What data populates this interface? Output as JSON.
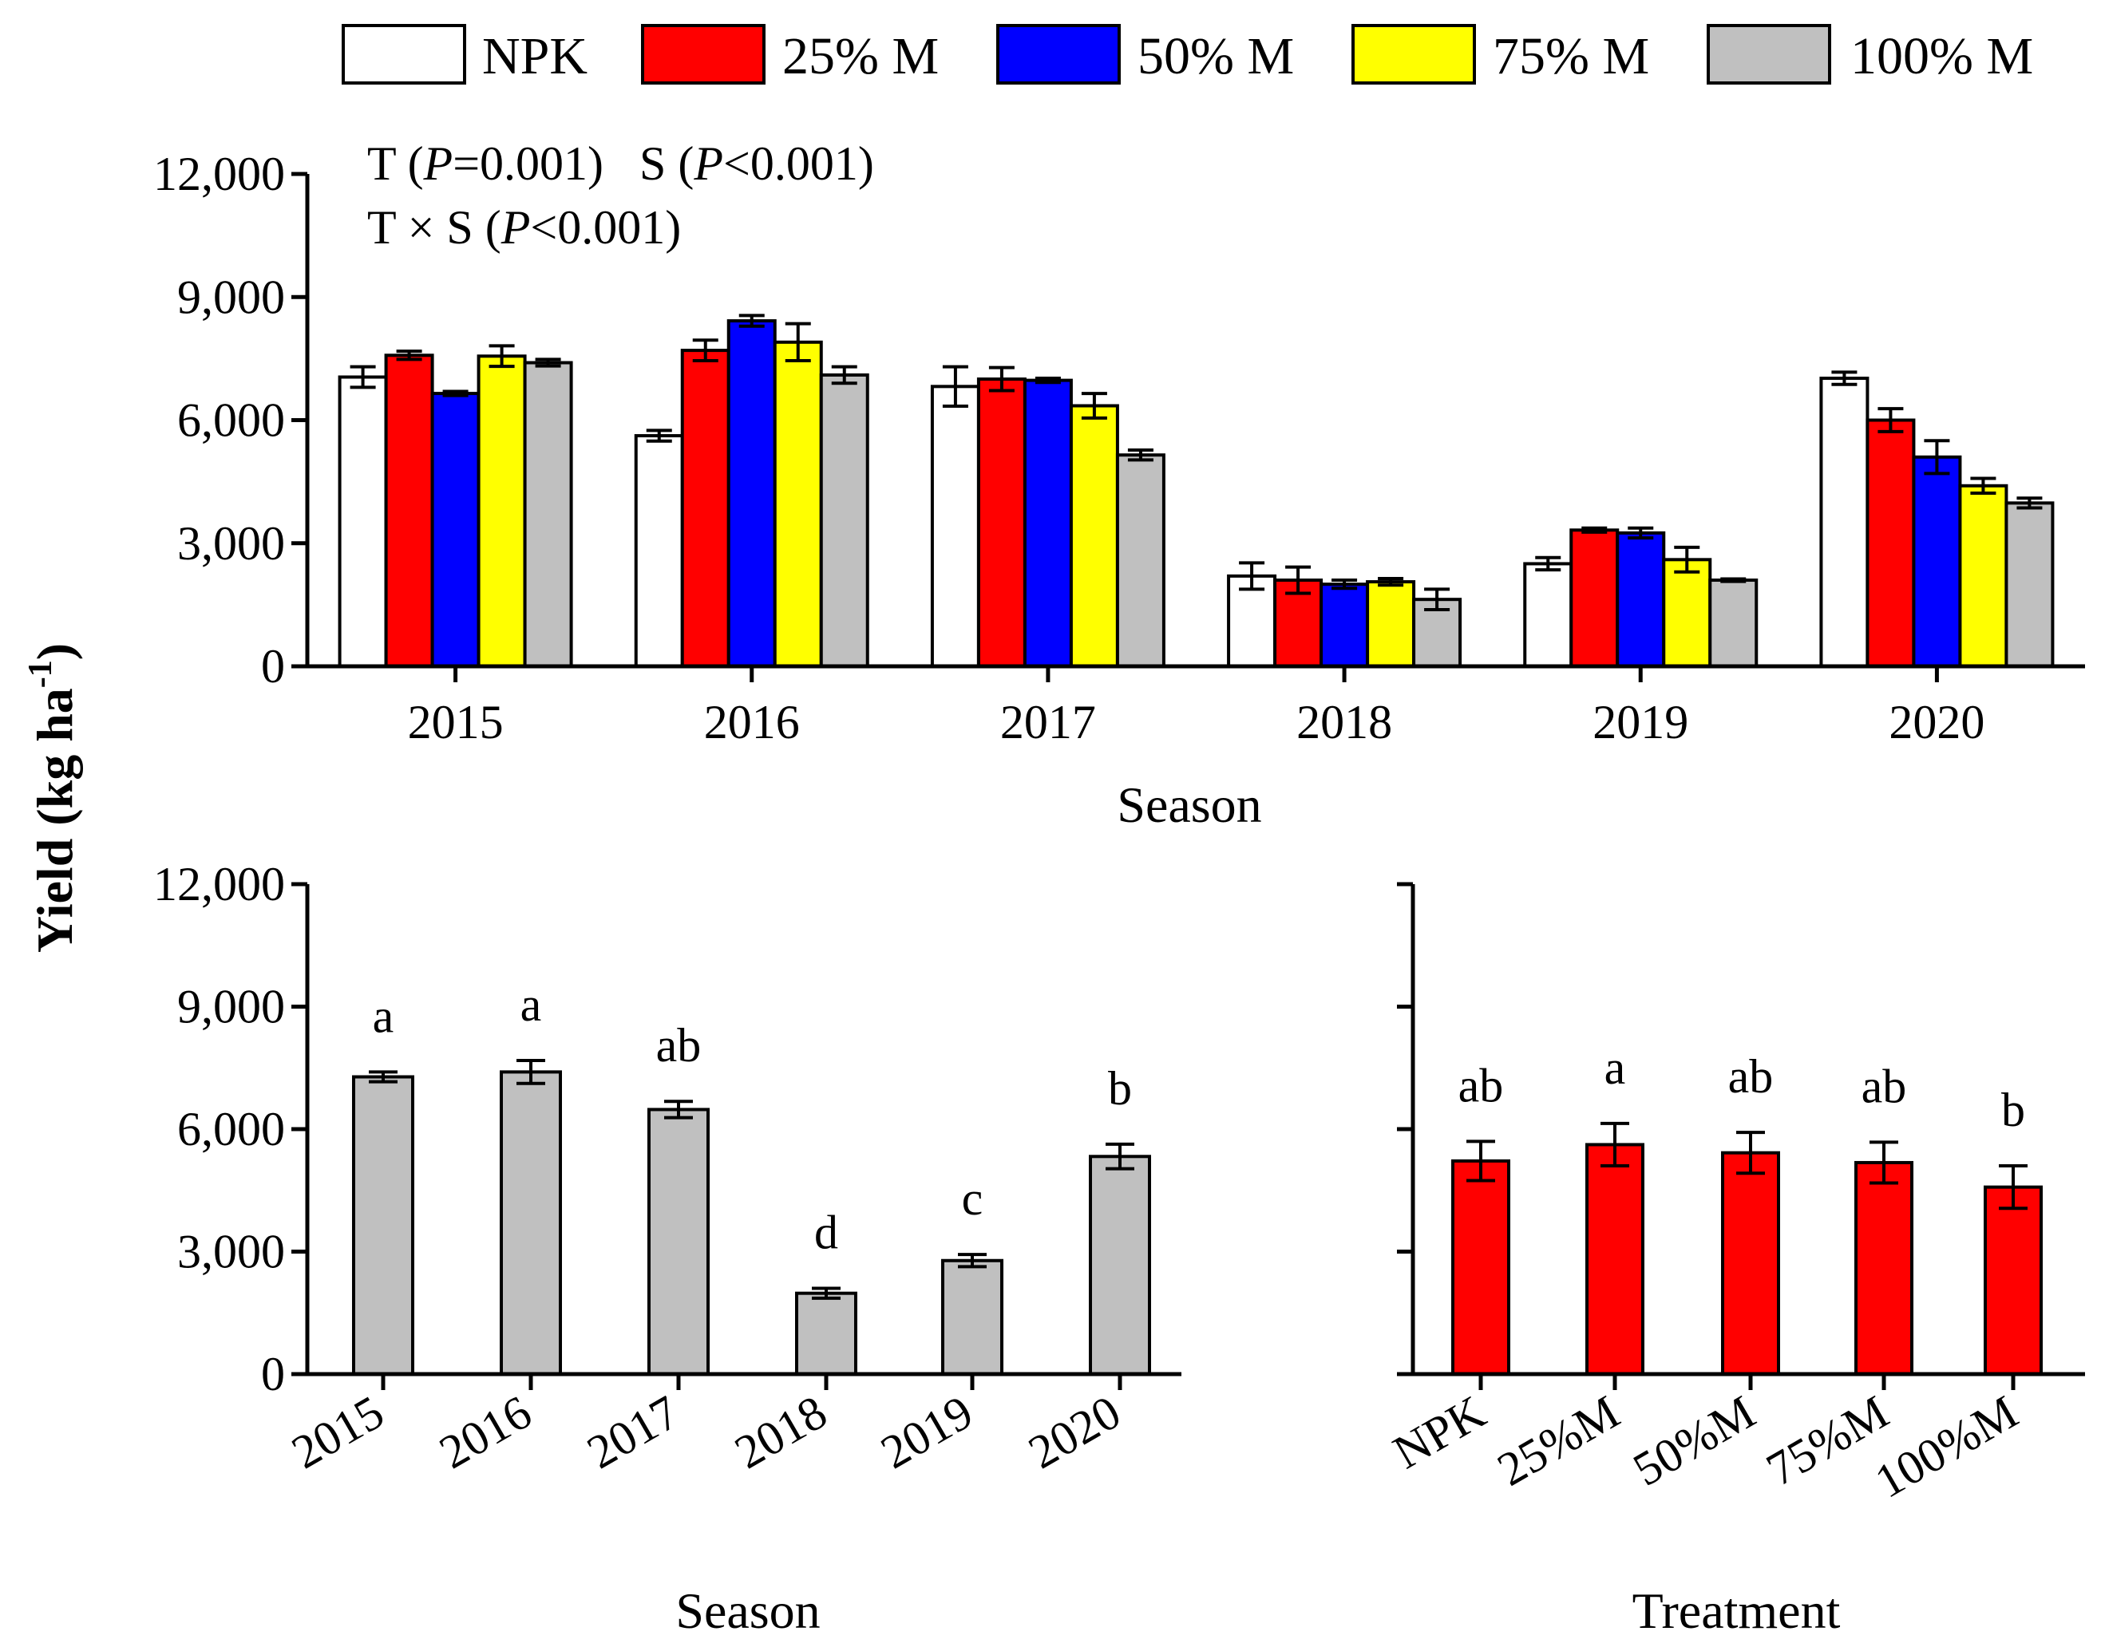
{
  "chart_data": [
    {
      "id": "top",
      "type": "bar",
      "title": "",
      "xlabel": "Season",
      "ylabel": "Yield (kg ha⁻¹)",
      "ylabel_main": "Yield (kg ha",
      "ylabel_sup": "-1",
      "ylabel_close": ")",
      "ylim": [
        0,
        12000
      ],
      "yticks": [
        0,
        3000,
        6000,
        9000,
        12000
      ],
      "ytick_labels": [
        "0",
        "3,000",
        "6,000",
        "9,000",
        "12,000"
      ],
      "categories": [
        "2015",
        "2016",
        "2017",
        "2018",
        "2019",
        "2020"
      ],
      "stats_line1": {
        "t": "T (",
        "t_p": "P",
        "t_val": "=0.001)",
        "s": "S (",
        "s_p": "P",
        "s_val": "<0.001)"
      },
      "stats_line2": {
        "ts": "T × S (",
        "ts_p": "P",
        "ts_val": "<0.001)"
      },
      "series": [
        {
          "name": "NPK",
          "color": "#ffffff",
          "values": [
            7050,
            5620,
            6820,
            2200,
            2500,
            7020
          ],
          "errors": [
            250,
            130,
            480,
            320,
            150,
            150
          ]
        },
        {
          "name": "25% M",
          "color": "#ff0000",
          "values": [
            7580,
            7700,
            7000,
            2100,
            3320,
            6000
          ],
          "errors": [
            100,
            250,
            280,
            320,
            50,
            280
          ]
        },
        {
          "name": "50% M",
          "color": "#0000ff",
          "values": [
            6650,
            8420,
            6970,
            2000,
            3250,
            5100
          ],
          "errors": [
            50,
            130,
            50,
            100,
            120,
            400
          ]
        },
        {
          "name": "75% M",
          "color": "#ffff00",
          "values": [
            7560,
            7900,
            6350,
            2060,
            2600,
            4400
          ],
          "errors": [
            250,
            450,
            300,
            80,
            300,
            180
          ]
        },
        {
          "name": "100% M",
          "color": "#c0c0c0",
          "values": [
            7400,
            7100,
            5150,
            1630,
            2100,
            3980
          ],
          "errors": [
            80,
            200,
            120,
            250,
            30,
            120
          ]
        }
      ]
    },
    {
      "id": "bottom-left",
      "type": "bar",
      "title": "",
      "xlabel": "Season",
      "ylabel": "",
      "ylim": [
        0,
        12000
      ],
      "yticks": [
        0,
        3000,
        6000,
        9000,
        12000
      ],
      "ytick_labels": [
        "0",
        "3,000",
        "6,000",
        "9,000",
        "12,000"
      ],
      "categories": [
        "2015",
        "2016",
        "2017",
        "2018",
        "2019",
        "2020"
      ],
      "color": "#c0c0c0",
      "values": [
        7280,
        7400,
        6480,
        1980,
        2780,
        5330
      ],
      "errors": [
        120,
        280,
        200,
        120,
        150,
        300
      ],
      "letters": [
        "a",
        "a",
        "ab",
        "d",
        "c",
        "b"
      ]
    },
    {
      "id": "bottom-right",
      "type": "bar",
      "title": "",
      "xlabel": "Treatment",
      "ylabel": "",
      "ylim": [
        0,
        12000
      ],
      "yticks": [
        0,
        3000,
        6000,
        9000,
        12000
      ],
      "categories": [
        "NPK",
        "25%M",
        "50%M",
        "75%M",
        "100%M"
      ],
      "color": "#ff0000",
      "values": [
        5220,
        5620,
        5420,
        5180,
        4580
      ],
      "errors": [
        480,
        520,
        500,
        500,
        520
      ],
      "letters": [
        "ab",
        "a",
        "ab",
        "ab",
        "b"
      ]
    }
  ]
}
